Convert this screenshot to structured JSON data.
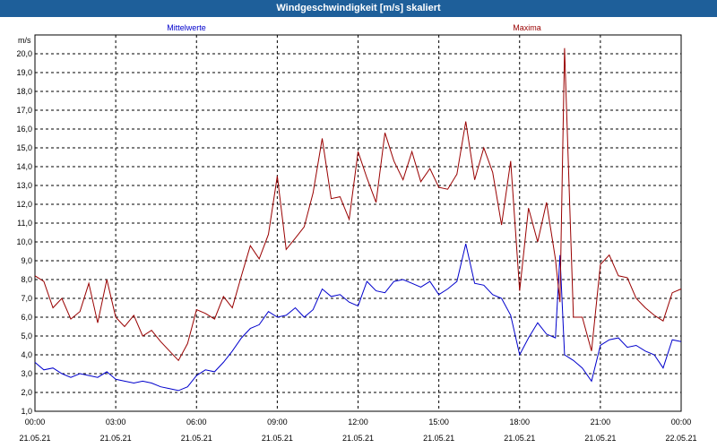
{
  "title": "Windgeschwindigkeit [m/s] skaliert",
  "chart_data": {
    "type": "line",
    "title": "Windgeschwindigkeit [m/s] skaliert",
    "ylabel": "m/s",
    "xlabel": "",
    "ylim": [
      1.0,
      21.0
    ],
    "xlim_hours": [
      0,
      24
    ],
    "grid": true,
    "y_ticks": [
      "1,0",
      "2,0",
      "3,0",
      "4,0",
      "5,0",
      "6,0",
      "7,0",
      "8,0",
      "9,0",
      "10,0",
      "11,0",
      "12,0",
      "13,0",
      "14,0",
      "15,0",
      "16,0",
      "17,0",
      "18,0",
      "19,0",
      "20,0"
    ],
    "x_ticks": [
      {
        "time": "00:00",
        "date": "21.05.21"
      },
      {
        "time": "03:00",
        "date": "21.05.21"
      },
      {
        "time": "06:00",
        "date": "21.05.21"
      },
      {
        "time": "09:00",
        "date": "21.05.21"
      },
      {
        "time": "12:00",
        "date": "21.05.21"
      },
      {
        "time": "15:00",
        "date": "21.05.21"
      },
      {
        "time": "18:00",
        "date": "21.05.21"
      },
      {
        "time": "21:00",
        "date": "21.05.21"
      },
      {
        "time": "00:00",
        "date": "22.05.21"
      }
    ],
    "series": [
      {
        "name": "Mittelwerte",
        "color": "#0000cc",
        "x": [
          0,
          0.33,
          0.67,
          1,
          1.33,
          1.67,
          2,
          2.33,
          2.67,
          3,
          3.33,
          3.67,
          4,
          4.33,
          4.67,
          5,
          5.33,
          5.67,
          6,
          6.33,
          6.67,
          7,
          7.33,
          7.67,
          8,
          8.33,
          8.67,
          9,
          9.33,
          9.67,
          10,
          10.33,
          10.67,
          11,
          11.33,
          11.67,
          12,
          12.33,
          12.67,
          13,
          13.33,
          13.67,
          14,
          14.33,
          14.67,
          15,
          15.33,
          15.67,
          16,
          16.33,
          16.67,
          17,
          17.33,
          17.67,
          18,
          18.33,
          18.67,
          19,
          19.33,
          19.5,
          19.67,
          20,
          20.33,
          20.67,
          21,
          21.33,
          21.67,
          22,
          22.33,
          22.67,
          23,
          23.33,
          23.67,
          24
        ],
        "values": [
          3.6,
          3.2,
          3.3,
          3.0,
          2.8,
          3.0,
          2.9,
          2.8,
          3.1,
          2.7,
          2.6,
          2.5,
          2.6,
          2.5,
          2.3,
          2.2,
          2.1,
          2.3,
          2.9,
          3.2,
          3.1,
          3.6,
          4.2,
          4.9,
          5.4,
          5.6,
          6.3,
          6.0,
          6.1,
          6.5,
          6.0,
          6.4,
          7.5,
          7.1,
          7.2,
          6.8,
          6.6,
          7.9,
          7.4,
          7.3,
          7.9,
          8.0,
          7.8,
          7.6,
          7.9,
          7.2,
          7.5,
          7.9,
          9.9,
          7.8,
          7.7,
          7.2,
          7.0,
          6.1,
          4.0,
          4.9,
          5.7,
          5.1,
          4.9,
          9.3,
          4.0,
          3.7,
          3.3,
          2.6,
          4.5,
          4.8,
          4.9,
          4.4,
          4.5,
          4.2,
          4.0,
          3.3,
          4.8,
          4.7
        ]
      },
      {
        "name": "Maxima",
        "color": "#990000",
        "x": [
          0,
          0.33,
          0.67,
          1,
          1.33,
          1.67,
          2,
          2.33,
          2.67,
          3,
          3.33,
          3.67,
          4,
          4.33,
          4.67,
          5,
          5.33,
          5.67,
          6,
          6.33,
          6.67,
          7,
          7.33,
          7.67,
          8,
          8.33,
          8.67,
          9,
          9.33,
          9.67,
          10,
          10.33,
          10.67,
          11,
          11.33,
          11.67,
          12,
          12.33,
          12.67,
          13,
          13.33,
          13.67,
          14,
          14.33,
          14.67,
          15,
          15.33,
          15.67,
          16,
          16.33,
          16.67,
          17,
          17.33,
          17.67,
          18,
          18.33,
          18.67,
          19,
          19.33,
          19.5,
          19.67,
          20,
          20.33,
          20.67,
          21,
          21.33,
          21.67,
          22,
          22.33,
          22.67,
          23,
          23.33,
          23.67,
          24
        ],
        "values": [
          8.2,
          7.9,
          6.5,
          7.0,
          5.9,
          6.3,
          7.8,
          5.7,
          8.0,
          6.0,
          5.5,
          6.1,
          5.0,
          5.3,
          4.7,
          4.2,
          3.7,
          4.6,
          6.4,
          6.2,
          5.9,
          7.1,
          6.5,
          8.2,
          9.8,
          9.1,
          10.4,
          13.5,
          9.6,
          10.2,
          10.8,
          12.6,
          15.5,
          12.3,
          12.4,
          11.2,
          14.8,
          13.4,
          12.1,
          15.8,
          14.3,
          13.3,
          14.8,
          13.2,
          13.9,
          12.9,
          12.8,
          13.6,
          16.4,
          13.3,
          15.0,
          13.7,
          10.9,
          14.3,
          7.4,
          11.8,
          10.0,
          12.1,
          9.1,
          6.8,
          20.3,
          6.0,
          6.0,
          4.2,
          8.8,
          9.3,
          8.2,
          8.1,
          7.0,
          6.5,
          6.1,
          5.8,
          7.3,
          7.5
        ]
      }
    ]
  }
}
